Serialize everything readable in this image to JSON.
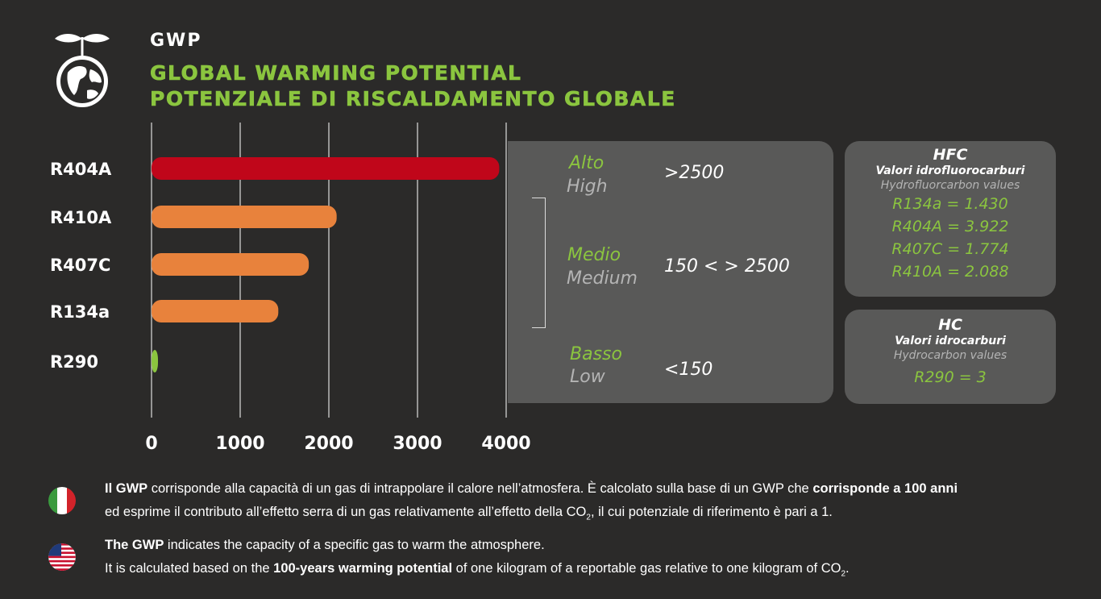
{
  "header": {
    "short_title": "GWP",
    "title_en": "GLOBAL WARMING POTENTIAL",
    "title_it": "POTENZIALE DI RISCALDAMENTO GLOBALE"
  },
  "colors": {
    "background": "#2b2a29",
    "accent_green": "#8bc53f",
    "high_red": "#c0061a",
    "medium_orange": "#e8823c",
    "low_green": "#8bc53f",
    "panel_gray": "#595958"
  },
  "chart_data": {
    "type": "bar",
    "orientation": "horizontal",
    "categories": [
      "R404A",
      "R410A",
      "R407C",
      "R134a",
      "R290"
    ],
    "values": [
      3922,
      2088,
      1774,
      1430,
      3
    ],
    "bar_colors": [
      "#c0061a",
      "#e8823c",
      "#e8823c",
      "#e8823c",
      "#8bc53f"
    ],
    "xlim": [
      0,
      4000
    ],
    "xticks": [
      "0",
      "1000",
      "2000",
      "3000",
      "4000"
    ],
    "grid": true,
    "title": "",
    "xlabel": "",
    "ylabel": ""
  },
  "legend": {
    "high": {
      "it": "Alto",
      "en": "High",
      "value": ">2500"
    },
    "medium": {
      "it": "Medio",
      "en": "Medium",
      "value": "150 < > 2500"
    },
    "low": {
      "it": "Basso",
      "en": "Low",
      "value": "<150"
    }
  },
  "hfc": {
    "title": "HFC",
    "subtitle_it": "Valori idrofluorocarburi",
    "subtitle_en": "Hydrofluorcarbon values",
    "values": [
      "R134a = 1.430",
      "R404A = 3.922",
      "R407C = 1.774",
      "R410A = 2.088"
    ]
  },
  "hc": {
    "title": "HC",
    "subtitle_it": "Valori idrocarburi",
    "subtitle_en": "Hydrocarbon values",
    "values": [
      "R290 = 3"
    ]
  },
  "notes": {
    "it": {
      "b1": "Il GWP",
      "t1": " corrisponde alla capacità di un gas di intrappolare il calore nell’atmosfera. È calcolato sulla base di un GWP che ",
      "b2": "corrisponde a 100 anni",
      "t2": "ed esprime il contributo all’effetto serra di un gas relativamente all’effetto della CO",
      "sub": "2",
      "t3": ", il cui potenziale di riferimento è pari a 1."
    },
    "en": {
      "b1": "The GWP",
      "t1": " indicates the capacity of a specific gas to warm the atmosphere.",
      "t2": "It is calculated based on the ",
      "b2": "100-years warming potential",
      "t3": " of one kilogram of a reportable gas relative to one kilogram of CO",
      "sub": "2",
      "t4": "."
    }
  }
}
